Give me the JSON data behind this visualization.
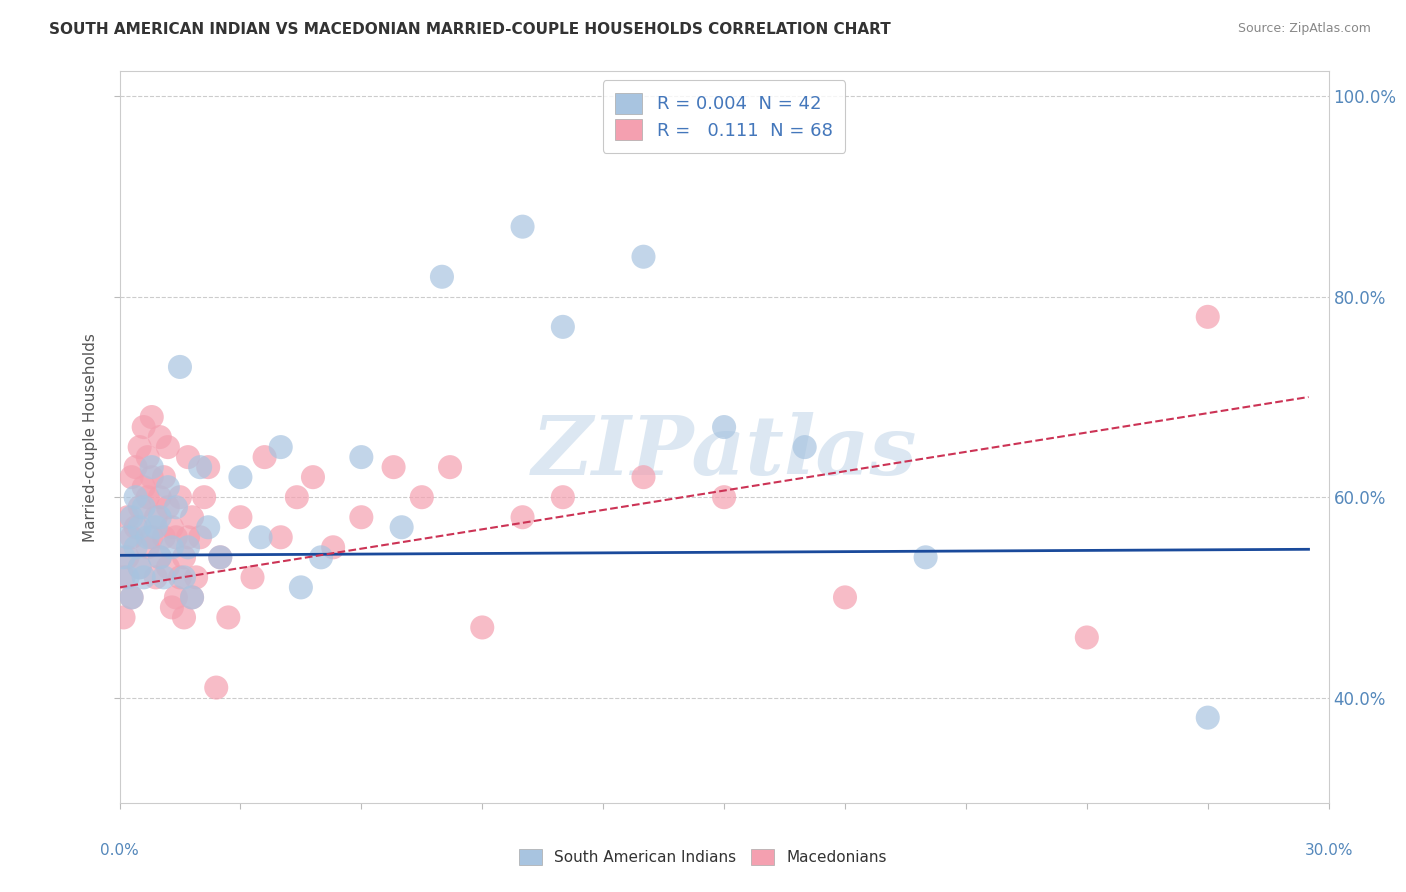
{
  "title": "SOUTH AMERICAN INDIAN VS MACEDONIAN MARRIED-COUPLE HOUSEHOLDS CORRELATION CHART",
  "source": "Source: ZipAtlas.com",
  "ylabel": "Married-couple Households",
  "legend_blue_label": "South American Indians",
  "legend_pink_label": "Macedonians",
  "blue_R": "0.004",
  "blue_N": "42",
  "pink_R": "0.111",
  "pink_N": "68",
  "blue_color": "#A8C4E0",
  "pink_color": "#F4A0B0",
  "blue_line_color": "#1A4A9B",
  "pink_line_color": "#CC3355",
  "watermark": "ZIPatlas",
  "watermark_color": "#C5D8EA",
  "xlim": [
    0.0,
    0.3
  ],
  "ylim": [
    0.295,
    1.025
  ],
  "yticks": [
    0.4,
    0.6,
    0.8,
    1.0
  ],
  "ytick_labels": [
    "40.0%",
    "60.0%",
    "80.0%",
    "100.0%"
  ],
  "blue_scatter_x": [
    0.001,
    0.002,
    0.002,
    0.003,
    0.003,
    0.004,
    0.004,
    0.005,
    0.005,
    0.006,
    0.006,
    0.007,
    0.008,
    0.009,
    0.01,
    0.01,
    0.011,
    0.012,
    0.013,
    0.014,
    0.015,
    0.016,
    0.017,
    0.018,
    0.02,
    0.022,
    0.025,
    0.03,
    0.035,
    0.04,
    0.045,
    0.05,
    0.06,
    0.07,
    0.08,
    0.1,
    0.11,
    0.13,
    0.15,
    0.17,
    0.2,
    0.27
  ],
  "blue_scatter_y": [
    0.54,
    0.56,
    0.52,
    0.58,
    0.5,
    0.55,
    0.6,
    0.57,
    0.53,
    0.59,
    0.52,
    0.56,
    0.63,
    0.57,
    0.54,
    0.58,
    0.52,
    0.61,
    0.55,
    0.59,
    0.73,
    0.52,
    0.55,
    0.5,
    0.63,
    0.57,
    0.54,
    0.62,
    0.56,
    0.65,
    0.51,
    0.54,
    0.64,
    0.57,
    0.82,
    0.87,
    0.77,
    0.84,
    0.67,
    0.65,
    0.54,
    0.38
  ],
  "pink_scatter_x": [
    0.001,
    0.001,
    0.002,
    0.002,
    0.003,
    0.003,
    0.003,
    0.004,
    0.004,
    0.005,
    0.005,
    0.005,
    0.006,
    0.006,
    0.007,
    0.007,
    0.007,
    0.008,
    0.008,
    0.008,
    0.009,
    0.009,
    0.01,
    0.01,
    0.01,
    0.011,
    0.011,
    0.012,
    0.012,
    0.012,
    0.013,
    0.013,
    0.014,
    0.014,
    0.015,
    0.015,
    0.016,
    0.016,
    0.017,
    0.017,
    0.018,
    0.018,
    0.019,
    0.02,
    0.021,
    0.022,
    0.024,
    0.025,
    0.027,
    0.03,
    0.033,
    0.036,
    0.04,
    0.044,
    0.048,
    0.053,
    0.06,
    0.068,
    0.075,
    0.082,
    0.09,
    0.1,
    0.11,
    0.13,
    0.15,
    0.18,
    0.24,
    0.27
  ],
  "pink_scatter_y": [
    0.52,
    0.48,
    0.58,
    0.54,
    0.62,
    0.56,
    0.5,
    0.63,
    0.57,
    0.65,
    0.59,
    0.53,
    0.67,
    0.61,
    0.55,
    0.6,
    0.64,
    0.56,
    0.62,
    0.68,
    0.52,
    0.58,
    0.54,
    0.6,
    0.66,
    0.56,
    0.62,
    0.53,
    0.59,
    0.65,
    0.49,
    0.57,
    0.5,
    0.56,
    0.52,
    0.6,
    0.54,
    0.48,
    0.56,
    0.64,
    0.5,
    0.58,
    0.52,
    0.56,
    0.6,
    0.63,
    0.41,
    0.54,
    0.48,
    0.58,
    0.52,
    0.64,
    0.56,
    0.6,
    0.62,
    0.55,
    0.58,
    0.63,
    0.6,
    0.63,
    0.47,
    0.58,
    0.6,
    0.62,
    0.6,
    0.5,
    0.46,
    0.78
  ],
  "blue_trend_x": [
    0.0,
    0.295
  ],
  "blue_trend_y": [
    0.542,
    0.548
  ],
  "pink_trend_x": [
    0.0,
    0.295
  ],
  "pink_trend_y": [
    0.51,
    0.7
  ]
}
